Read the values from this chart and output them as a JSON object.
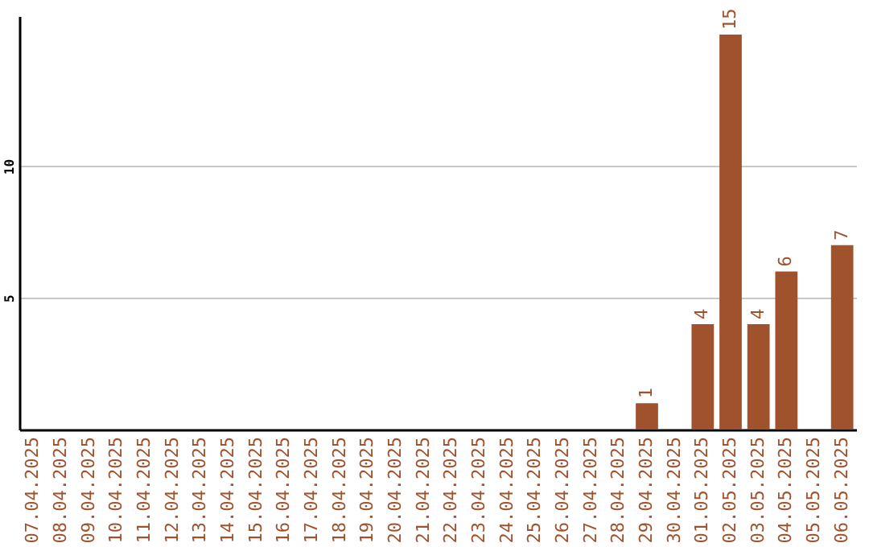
{
  "chart_data": {
    "type": "bar",
    "categories": [
      "07.04.2025",
      "08.04.2025",
      "09.04.2025",
      "10.04.2025",
      "11.04.2025",
      "12.04.2025",
      "13.04.2025",
      "14.04.2025",
      "15.04.2025",
      "16.04.2025",
      "17.04.2025",
      "18.04.2025",
      "19.04.2025",
      "20.04.2025",
      "21.04.2025",
      "22.04.2025",
      "23.04.2025",
      "24.04.2025",
      "25.04.2025",
      "26.04.2025",
      "27.04.2025",
      "28.04.2025",
      "29.04.2025",
      "30.04.2025",
      "01.05.2025",
      "02.05.2025",
      "03.05.2025",
      "04.05.2025",
      "05.05.2025",
      "06.05.2025"
    ],
    "values": [
      0,
      0,
      0,
      0,
      0,
      0,
      0,
      0,
      0,
      0,
      0,
      0,
      0,
      0,
      0,
      0,
      0,
      0,
      0,
      0,
      0,
      0,
      1,
      0,
      4,
      15,
      4,
      6,
      0,
      7
    ],
    "value_labels": [
      null,
      null,
      null,
      null,
      null,
      null,
      null,
      null,
      null,
      null,
      null,
      null,
      null,
      null,
      null,
      null,
      null,
      null,
      null,
      null,
      null,
      null,
      "1",
      null,
      "4",
      "15",
      "4",
      "6",
      null,
      "7"
    ],
    "color": "#a0522d",
    "ylim": [
      0,
      15.7
    ],
    "yticks": [
      5,
      10
    ],
    "grid": "y"
  }
}
